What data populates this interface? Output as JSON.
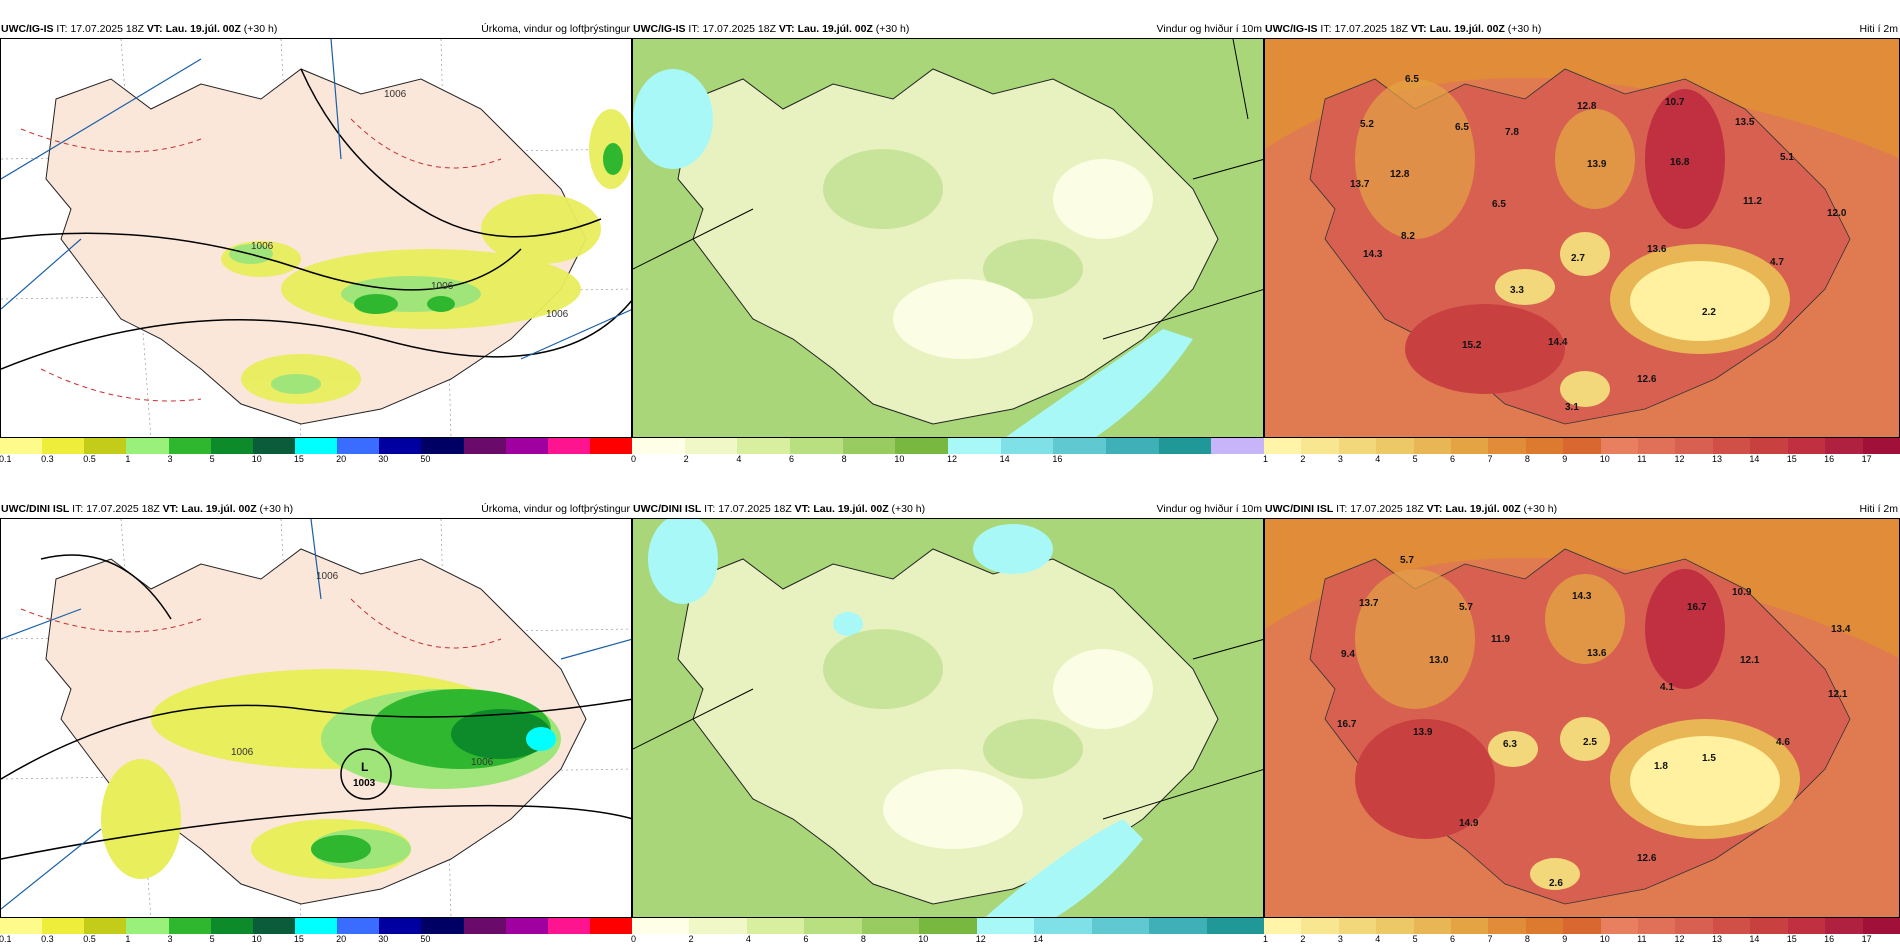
{
  "panels": [
    {
      "model": "UWC/IG-IS",
      "it_prefix": "IT:",
      "it": "17.07.2025 18Z",
      "vt_prefix": "VT:",
      "vt": "Lau. 19.júl. 00Z",
      "lead": "(+30 h)",
      "title": "Úrkoma, vindur og loftþrýstingur",
      "colorbar": {
        "colors": [
          "#fffb8a",
          "#eded3a",
          "#c4cc1a",
          "#99f07a",
          "#2fb82f",
          "#0d8a2a",
          "#0a5c3a",
          "#00ffff",
          "#3a6cff",
          "#0000a0",
          "#000064",
          "#6a0a6a",
          "#a000a0",
          "#ff1490",
          "#ff0000"
        ],
        "ticks": [
          "0.1",
          "0.3",
          "0.5",
          "1",
          "3",
          "5",
          "10",
          "15",
          "20",
          "30",
          "50"
        ]
      },
      "isobar_labels": [
        "1006",
        "1006",
        "1006",
        "1006"
      ]
    },
    {
      "model": "UWC/IG-IS",
      "it_prefix": "IT:",
      "it": "17.07.2025 18Z",
      "vt_prefix": "VT:",
      "vt": "Lau. 19.júl. 00Z",
      "lead": "(+30 h)",
      "title": "Vindur og hviður í 10m",
      "colorbar": {
        "colors": [
          "#ffffe8",
          "#f0f8c8",
          "#d8efa0",
          "#b8e080",
          "#98cc60",
          "#78b840",
          "#a8f8f8",
          "#80e0e8",
          "#60c8d0",
          "#40b0b8",
          "#209898",
          "#c8b4f8"
        ],
        "ticks": [
          "0",
          "2",
          "4",
          "6",
          "8",
          "10",
          "12",
          "14",
          "16"
        ]
      }
    },
    {
      "model": "UWC/IG-IS",
      "it_prefix": "IT:",
      "it": "17.07.2025 18Z",
      "vt_prefix": "VT:",
      "vt": "Lau. 19.júl. 00Z",
      "lead": "(+30 h)",
      "title": "Hiti í 2m",
      "colorbar": {
        "colors": [
          "#fff4a8",
          "#f8e690",
          "#f2d87a",
          "#ecc866",
          "#e8b654",
          "#e4a444",
          "#e08c38",
          "#dc7a30",
          "#d86830",
          "#e88060",
          "#e07058",
          "#d86050",
          "#d05048",
          "#c84040",
          "#c03040",
          "#b02040",
          "#a01038"
        ],
        "ticks": [
          "1",
          "2",
          "3",
          "4",
          "5",
          "6",
          "7",
          "8",
          "9",
          "10",
          "11",
          "12",
          "13",
          "14",
          "15",
          "16",
          "17"
        ]
      },
      "temps": [
        "6.5",
        "5.2",
        "6.5",
        "7.8",
        "12.8",
        "10.7",
        "13.5",
        "13.7",
        "12.8",
        "13.9",
        "16.8",
        "5.1",
        "6.5",
        "11.2",
        "12.0",
        "8.2",
        "14.3",
        "2.7",
        "13.6",
        "4.7",
        "3.3",
        "2.2",
        "15.2",
        "14.4",
        "12.6",
        "3.1"
      ]
    },
    {
      "model": "UWC/DINI ISL",
      "it_prefix": "IT:",
      "it": "17.07.2025 18Z",
      "vt_prefix": "VT:",
      "vt": "Lau. 19.júl. 00Z",
      "lead": "(+30 h)",
      "title": "Úrkoma, vindur og loftþrýstingur",
      "colorbar": {
        "colors": [
          "#fffb8a",
          "#eded3a",
          "#c4cc1a",
          "#99f07a",
          "#2fb82f",
          "#0d8a2a",
          "#0a5c3a",
          "#00ffff",
          "#3a6cff",
          "#0000a0",
          "#000064",
          "#6a0a6a",
          "#a000a0",
          "#ff1490",
          "#ff0000"
        ],
        "ticks": [
          "0.1",
          "0.3",
          "0.5",
          "1",
          "3",
          "5",
          "10",
          "15",
          "20",
          "30",
          "50"
        ]
      },
      "isobar_labels": [
        "1006",
        "1006",
        "1006",
        "1003"
      ],
      "low_label": "L"
    },
    {
      "model": "UWC/DINI ISL",
      "it_prefix": "IT:",
      "it": "17.07.2025 18Z",
      "vt_prefix": "VT:",
      "vt": "Lau. 19.júl. 00Z",
      "lead": "(+30 h)",
      "title": "Vindur og hviður í 10m",
      "colorbar": {
        "colors": [
          "#ffffe8",
          "#f0f8c8",
          "#d8efa0",
          "#b8e080",
          "#98cc60",
          "#78b840",
          "#a8f8f8",
          "#80e0e8",
          "#60c8d0",
          "#40b0b8",
          "#209898"
        ],
        "ticks": [
          "0",
          "2",
          "4",
          "6",
          "8",
          "10",
          "12",
          "14"
        ]
      }
    },
    {
      "model": "UWC/DINI ISL",
      "it_prefix": "IT:",
      "it": "17.07.2025 18Z",
      "vt_prefix": "VT:",
      "vt": "Lau. 19.júl. 00Z",
      "lead": "(+30 h)",
      "title": "Hiti í 2m",
      "colorbar": {
        "colors": [
          "#fff4a8",
          "#f8e690",
          "#f2d87a",
          "#ecc866",
          "#e8b654",
          "#e4a444",
          "#e08c38",
          "#dc7a30",
          "#d86830",
          "#e88060",
          "#e07058",
          "#d86050",
          "#d05048",
          "#c84040",
          "#c03040",
          "#b02040",
          "#a01038"
        ],
        "ticks": [
          "1",
          "2",
          "3",
          "4",
          "5",
          "6",
          "7",
          "8",
          "9",
          "10",
          "11",
          "12",
          "13",
          "14",
          "15",
          "16",
          "17"
        ]
      },
      "temps": [
        "5.7",
        "13.7",
        "5.7",
        "14.3",
        "10.9",
        "16.7",
        "13.4",
        "9.4",
        "13.0",
        "11.9",
        "13.6",
        "12.1",
        "12.1",
        "4.1",
        "16.7",
        "13.9",
        "6.3",
        "2.5",
        "4.6",
        "1.8",
        "1.5",
        "14.9",
        "12.6",
        "2.6"
      ]
    }
  ]
}
